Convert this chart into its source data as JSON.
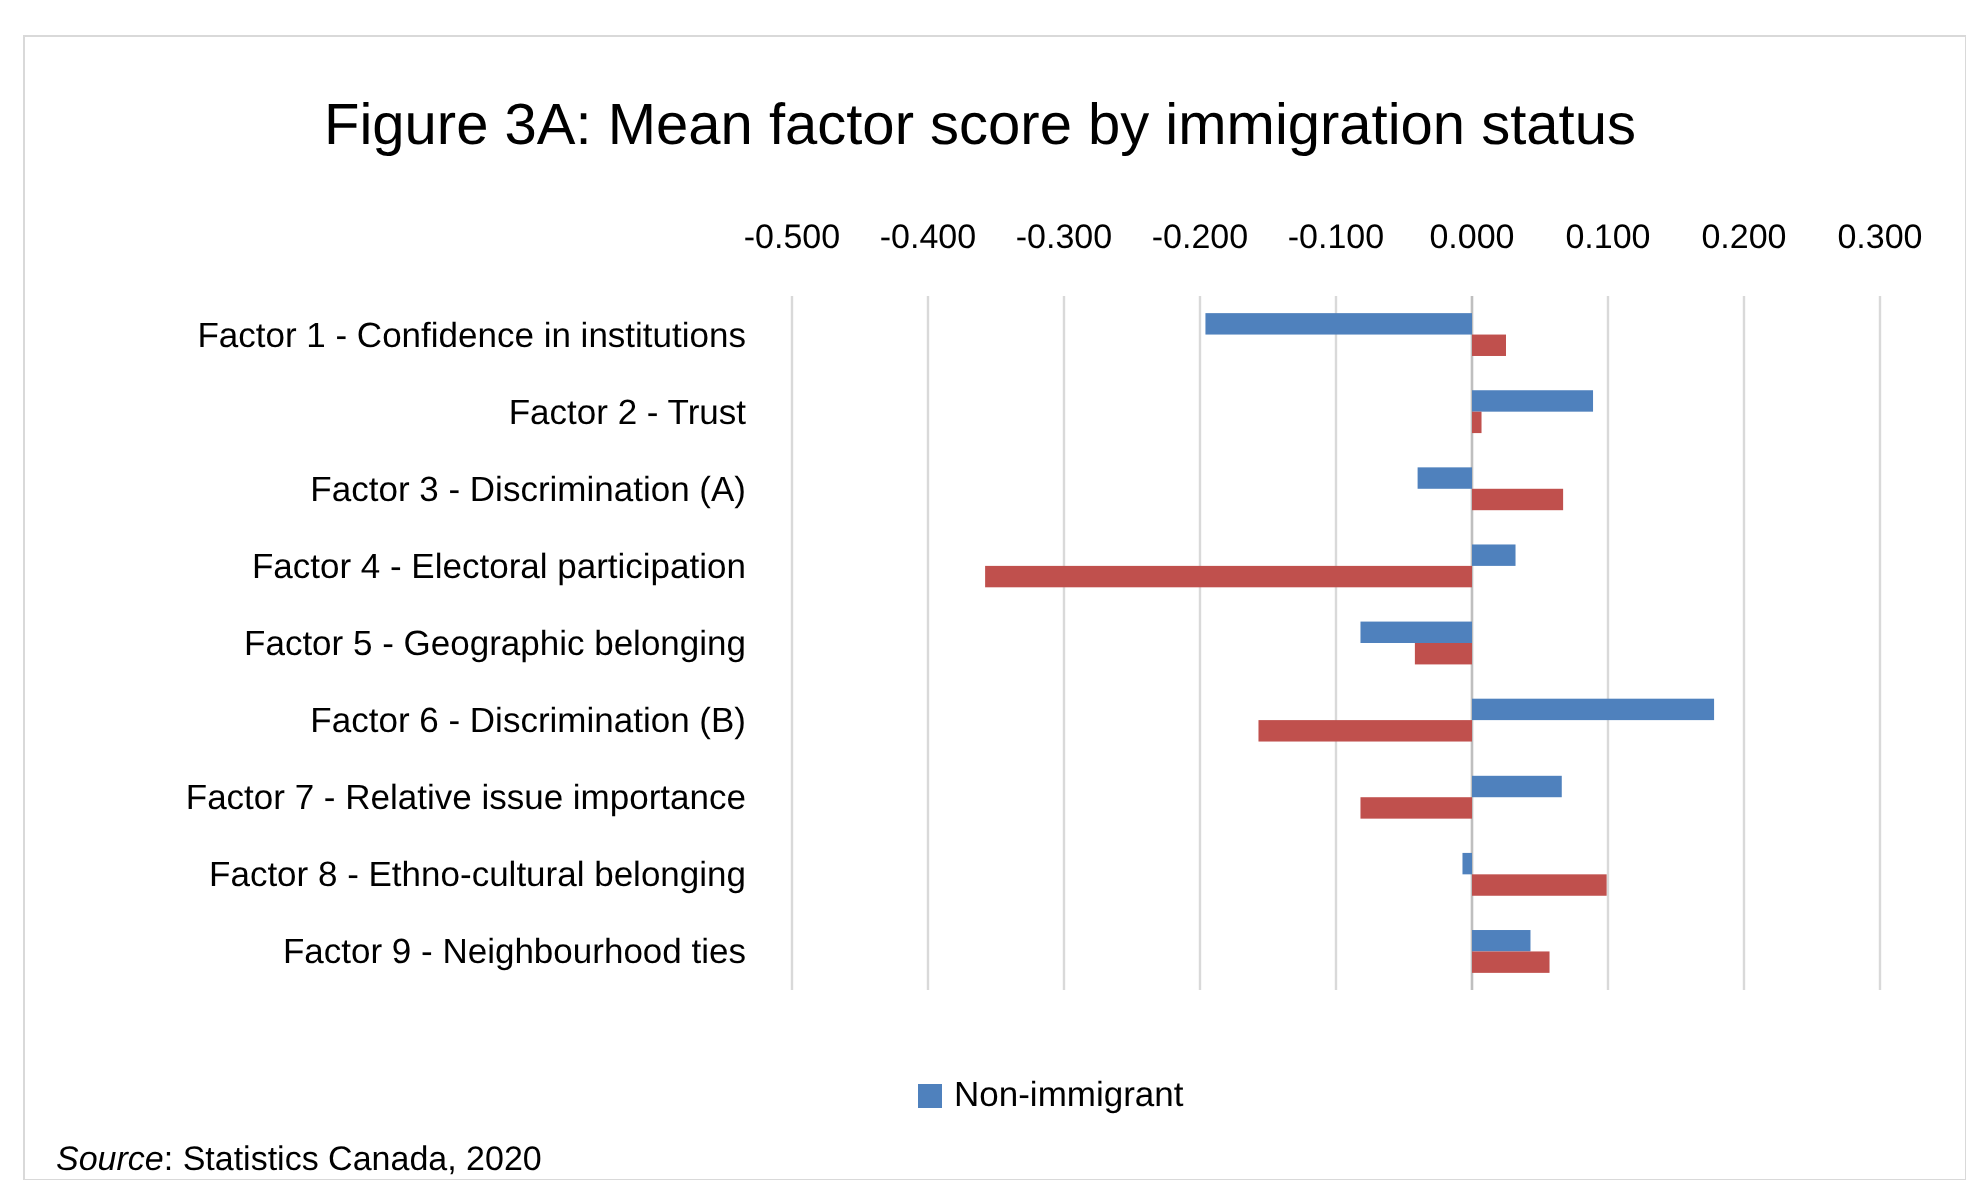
{
  "chart_data": {
    "type": "bar",
    "orientation": "horizontal",
    "title": "Figure 3A: Mean factor score by immigration status",
    "categories": [
      "Factor 1 - Confidence in institutions",
      "Factor 2 - Trust",
      "Factor 3 - Discrimination (A)",
      "Factor 4 - Electoral participation",
      "Factor 5 - Geographic belonging",
      "Factor 6 - Discrimination (B)",
      "Factor 7 - Relative issue importance",
      "Factor 8 - Ethno-cultural belonging",
      "Factor 9 - Neighbourhood ties"
    ],
    "series": [
      {
        "name": "Non-immigrant",
        "color": "#4f81bd",
        "values": [
          -0.196,
          0.089,
          -0.04,
          0.032,
          -0.082,
          0.178,
          0.066,
          -0.007,
          0.043
        ]
      },
      {
        "color": "#c0504d",
        "values": [
          0.025,
          0.007,
          0.067,
          -0.358,
          -0.042,
          -0.157,
          -0.082,
          0.099,
          0.057
        ]
      }
    ],
    "xlim": [
      -0.5,
      0.3
    ],
    "xticks": [
      {
        "value": -0.5,
        "label": "-0.500"
      },
      {
        "value": -0.4,
        "label": "-0.400"
      },
      {
        "value": -0.3,
        "label": "-0.300"
      },
      {
        "value": -0.2,
        "label": "-0.200"
      },
      {
        "value": -0.1,
        "label": "-0.100"
      },
      {
        "value": 0,
        "label": "0.000"
      },
      {
        "value": 0.1,
        "label": "0.100"
      },
      {
        "value": 0.2,
        "label": "0.200"
      },
      {
        "value": 0.3,
        "label": "0.300"
      }
    ],
    "grid": "x",
    "legend": "bottom",
    "annotations": [
      "Source: Statistics Canada, 2020"
    ]
  }
}
